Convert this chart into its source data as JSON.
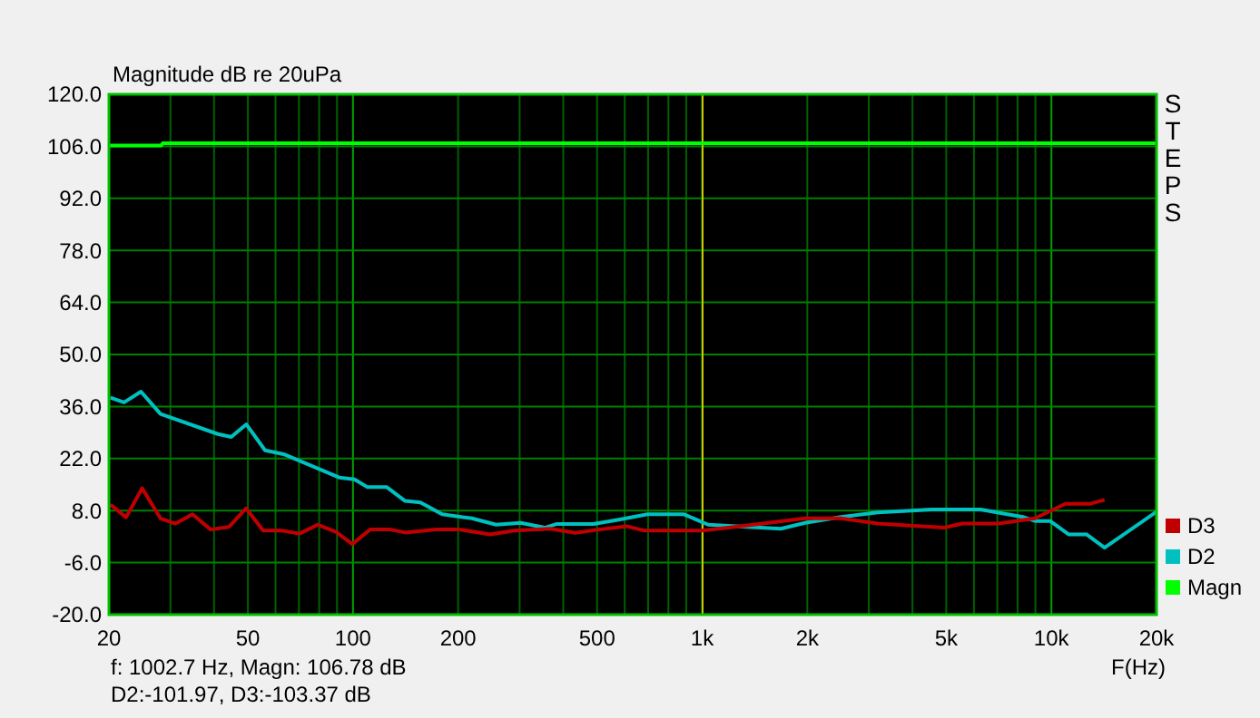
{
  "chart_data": {
    "type": "line",
    "ylabel": "Magnitude dB re 20uPa",
    "xlabel": "F(Hz)",
    "log": "x",
    "grid": true,
    "legend": "bottom right",
    "xlim": [
      20,
      20000
    ],
    "ylim": [
      -20,
      120
    ],
    "xticks": [
      20,
      {
        "value": 30,
        "label": null
      },
      {
        "value": 40,
        "label": null
      },
      50,
      {
        "value": 60,
        "label": null
      },
      {
        "value": 70,
        "label": null
      },
      {
        "value": 80,
        "label": null
      },
      {
        "value": 90,
        "label": null
      },
      100,
      200,
      {
        "value": 300,
        "label": null
      },
      {
        "value": 400,
        "label": null
      },
      500,
      {
        "value": 600,
        "label": null
      },
      {
        "value": 700,
        "label": null
      },
      {
        "value": 800,
        "label": null
      },
      {
        "value": 900,
        "label": null
      },
      {
        "value": 1000,
        "label": "1k"
      },
      {
        "value": 2000,
        "label": "2k"
      },
      {
        "value": 3000,
        "label": null
      },
      {
        "value": 4000,
        "label": null
      },
      {
        "value": 5000,
        "label": "5k"
      },
      {
        "value": 6000,
        "label": null
      },
      {
        "value": 7000,
        "label": null
      },
      {
        "value": 8000,
        "label": null
      },
      {
        "value": 9000,
        "label": null
      },
      {
        "value": 10000,
        "label": "10k"
      },
      {
        "value": 20000,
        "label": "20k"
      }
    ],
    "yticks": [
      {
        "value": -20,
        "label": "-20.0"
      },
      {
        "value": -6,
        "label": "-6.0"
      },
      {
        "value": 8,
        "label": "8.0"
      },
      {
        "value": 22,
        "label": "22.0"
      },
      {
        "value": 36,
        "label": "36.0"
      },
      {
        "value": 50,
        "label": "50.0"
      },
      {
        "value": 64,
        "label": "64.0"
      },
      {
        "value": 78,
        "label": "78.0"
      },
      {
        "value": 92,
        "label": "92.0"
      },
      {
        "value": 106,
        "label": "106.0"
      },
      {
        "value": 120,
        "label": "120.0"
      }
    ],
    "ref_lines": [
      {
        "axis": "x",
        "value": 1002.7,
        "color": "#c8c800"
      }
    ],
    "annotations": [
      "STEPS",
      "f: 1002.7 Hz, Magn: 106.78 dB",
      "D2:-101.97, D3:-103.37 dB"
    ],
    "series": [
      {
        "name": "D3",
        "color": "#c00000",
        "x": [
          20.2,
          22.4,
          24.9,
          28.1,
          31.0,
          34.7,
          39.1,
          44.1,
          49.4,
          55.3,
          62.4,
          70.3,
          79.3,
          89.3,
          99.5,
          112,
          128,
          141,
          173,
          202,
          247,
          290,
          368,
          433,
          507,
          607,
          684,
          819,
          1000,
          1321,
          1970,
          2500,
          3180,
          4930,
          5560,
          7060,
          8970,
          10960,
          12850,
          14200
        ],
        "values": [
          9.6,
          6.2,
          14.0,
          5.9,
          4.5,
          7.0,
          2.9,
          3.6,
          8.6,
          2.6,
          2.6,
          1.8,
          4.2,
          2.3,
          -1.0,
          2.9,
          2.9,
          2.1,
          2.9,
          2.9,
          1.6,
          2.6,
          3.1,
          2.0,
          2.9,
          3.8,
          2.6,
          2.6,
          2.6,
          3.9,
          5.9,
          5.9,
          4.5,
          3.4,
          4.5,
          4.5,
          5.9,
          9.8,
          9.8,
          10.9
        ]
      },
      {
        "name": "D2",
        "color": "#00c0c0",
        "x": [
          20.2,
          22.1,
          24.7,
          28.1,
          41.0,
          44.8,
          49.5,
          56.0,
          63.7,
          91.2,
          101,
          110,
          125,
          141,
          156,
          180,
          219,
          257,
          302,
          354,
          384,
          488,
          572,
          698,
          887,
          1040,
          1680,
          1970,
          2500,
          3180,
          4550,
          6270,
          8280,
          8970,
          9910,
          11200,
          12600,
          14200,
          20000
        ],
        "values": [
          38.4,
          37.1,
          40.0,
          34.0,
          28.6,
          27.8,
          31.2,
          24.2,
          23.1,
          16.9,
          16.4,
          14.3,
          14.3,
          10.6,
          10.2,
          7.0,
          5.9,
          4.2,
          4.7,
          3.4,
          4.4,
          4.4,
          5.5,
          7.0,
          7.0,
          4.2,
          3.1,
          4.7,
          6.3,
          7.5,
          8.3,
          8.3,
          6.3,
          5.2,
          5.2,
          1.6,
          1.6,
          -2.0,
          7.7
        ]
      },
      {
        "name": "Magn",
        "color": "#00ff00",
        "x": [
          20,
          28.2,
          28.5,
          20000
        ],
        "values": [
          106.2,
          106.2,
          106.8,
          106.8
        ]
      }
    ]
  }
}
